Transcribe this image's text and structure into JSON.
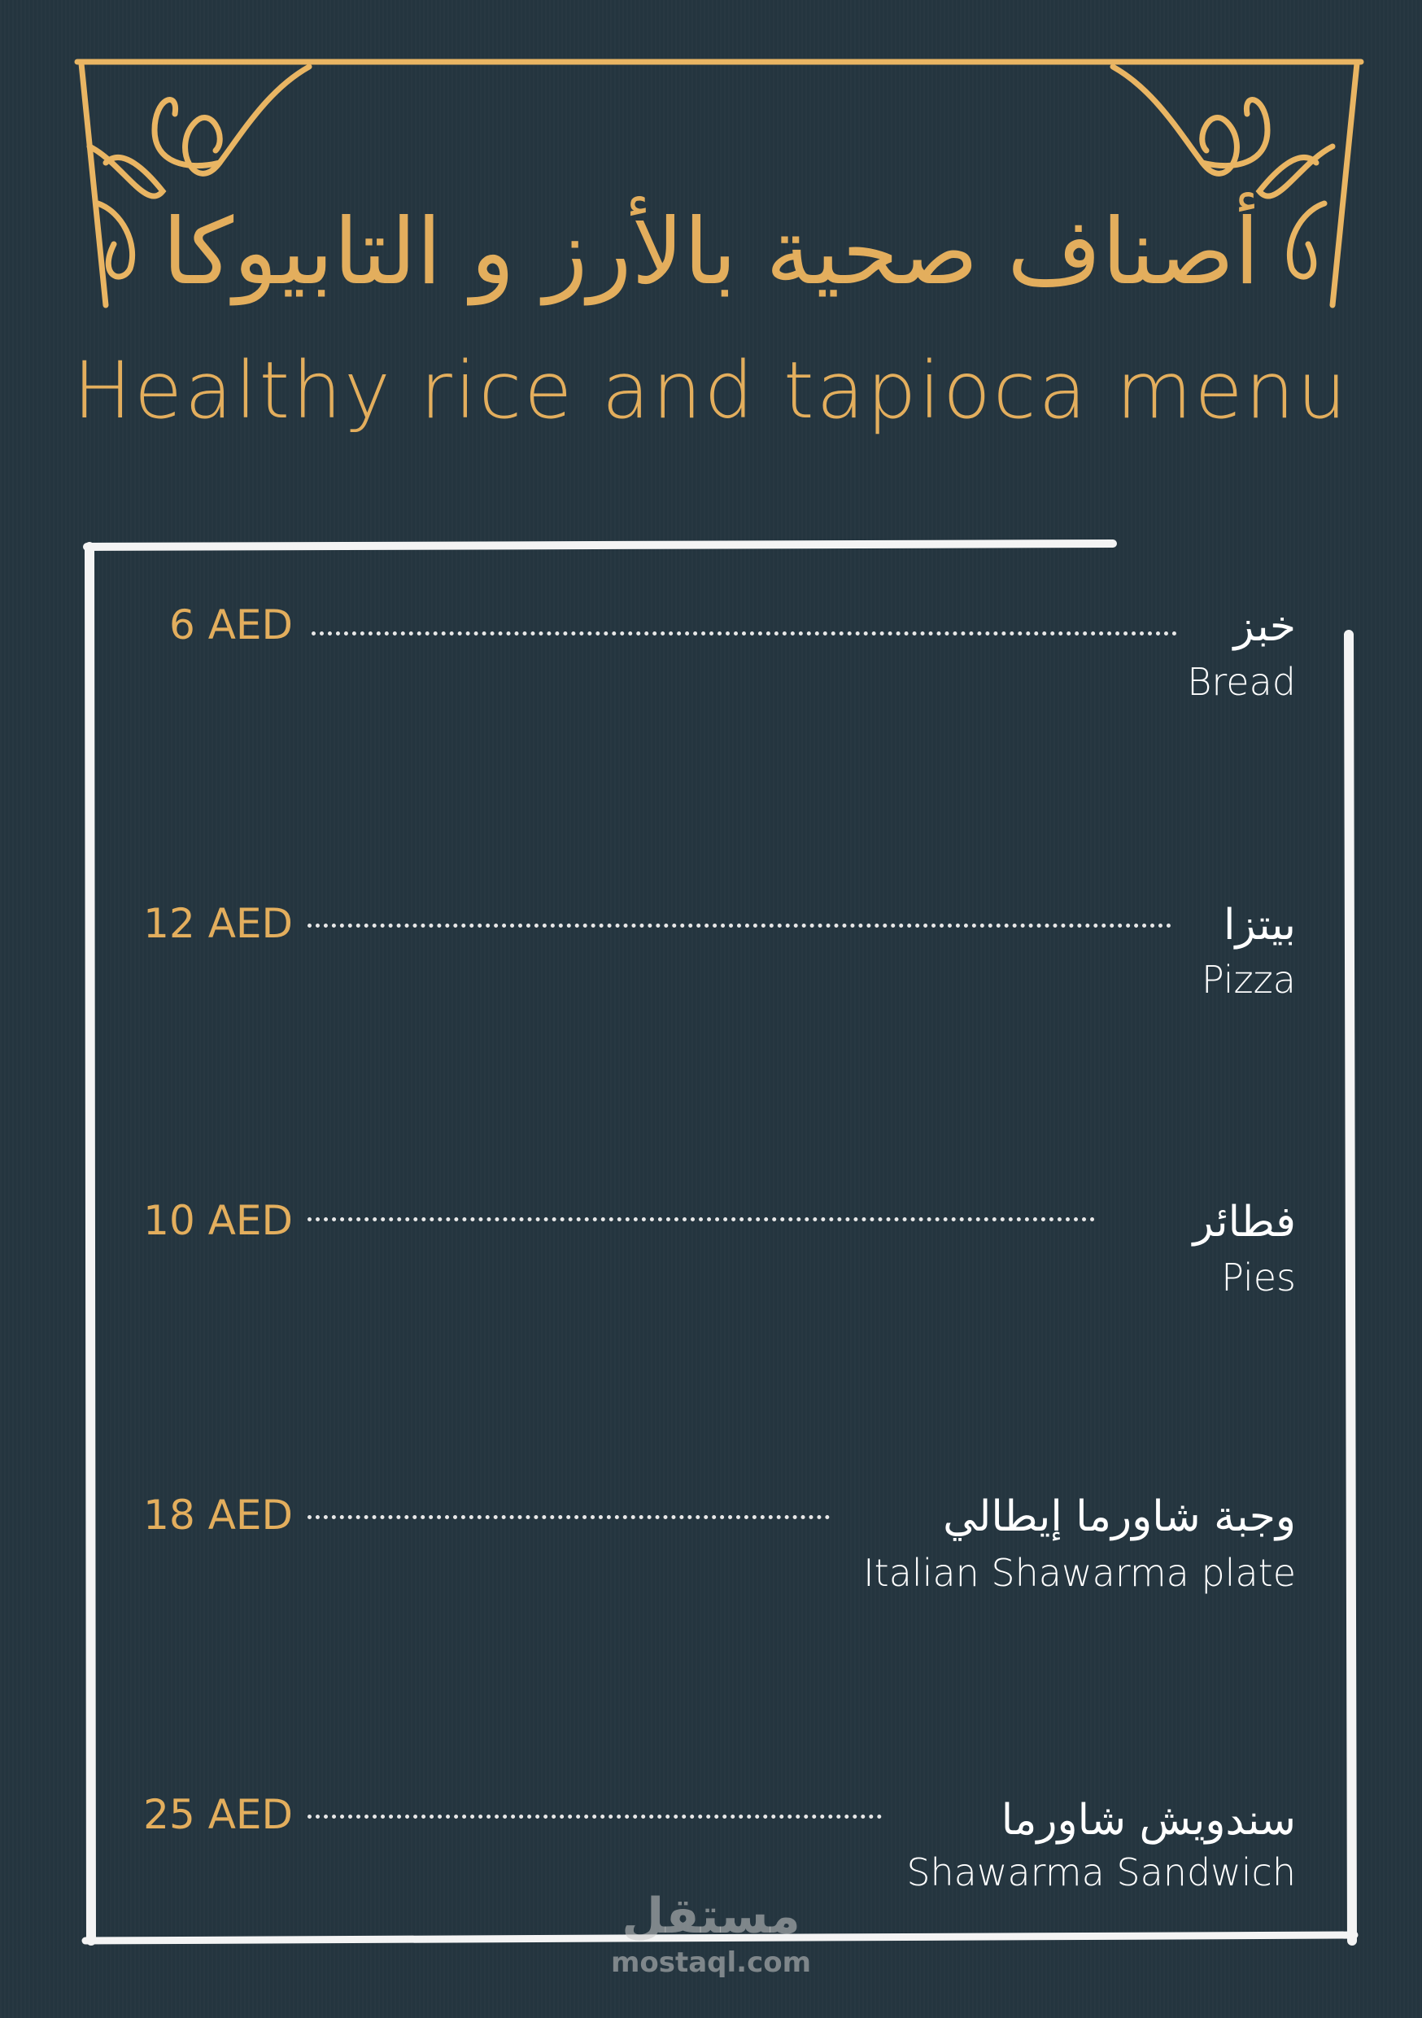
{
  "header": {
    "title_ar": "أصناف صحية بالأرز و التابيوكا",
    "title_en": "Healthy rice and tapioca menu"
  },
  "menu": {
    "items": [
      {
        "name_ar": "خبز",
        "name_en": "Bread",
        "price": "6 AED"
      },
      {
        "name_ar": "بيتزا",
        "name_en": "Pizza",
        "price": "12 AED"
      },
      {
        "name_ar": "فطائر",
        "name_en": "Pies",
        "price": "10 AED"
      },
      {
        "name_ar": "وجبة شاورما إيطالي",
        "name_en": "Italian Shawarma plate",
        "price": "18 AED"
      },
      {
        "name_ar": "سندويش شاورما",
        "name_en": "Shawarma Sandwich",
        "price": "25 AED"
      }
    ]
  },
  "watermark": {
    "logo_ar": "مستقل",
    "site": "mostaql.com"
  },
  "colors": {
    "background": "#253640",
    "gold": "#e3ae5d",
    "frame": "#ffffff"
  }
}
